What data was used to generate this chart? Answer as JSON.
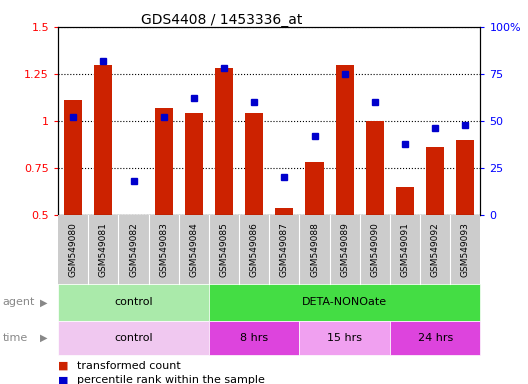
{
  "title": "GDS4408 / 1453336_at",
  "categories": [
    "GSM549080",
    "GSM549081",
    "GSM549082",
    "GSM549083",
    "GSM549084",
    "GSM549085",
    "GSM549086",
    "GSM549087",
    "GSM549088",
    "GSM549089",
    "GSM549090",
    "GSM549091",
    "GSM549092",
    "GSM549093"
  ],
  "red_values": [
    1.11,
    1.3,
    0.5,
    1.07,
    1.04,
    1.28,
    1.04,
    0.54,
    0.78,
    1.3,
    1.0,
    0.65,
    0.86,
    0.9
  ],
  "blue_values": [
    52,
    82,
    18,
    52,
    62,
    78,
    60,
    20,
    42,
    75,
    60,
    38,
    46,
    48
  ],
  "ylim_left": [
    0.5,
    1.5
  ],
  "ylim_right": [
    0,
    100
  ],
  "yticks_left": [
    0.5,
    0.75,
    1.0,
    1.25,
    1.5
  ],
  "yticks_right": [
    0,
    25,
    50,
    75,
    100
  ],
  "ytick_labels_left": [
    "0.5",
    "0.75",
    "1",
    "1.25",
    "1.5"
  ],
  "ytick_labels_right": [
    "0",
    "25",
    "50",
    "75",
    "100%"
  ],
  "bar_color": "#cc2200",
  "dot_color": "#0000cc",
  "agent_row": [
    {
      "label": "control",
      "start": 0,
      "end": 5,
      "color": "#aaeaaa"
    },
    {
      "label": "DETA-NONOate",
      "start": 5,
      "end": 14,
      "color": "#44dd44"
    }
  ],
  "time_row": [
    {
      "label": "control",
      "start": 0,
      "end": 5,
      "color": "#f0c8f0"
    },
    {
      "label": "8 hrs",
      "start": 5,
      "end": 8,
      "color": "#dd44dd"
    },
    {
      "label": "15 hrs",
      "start": 8,
      "end": 11,
      "color": "#f0a0f0"
    },
    {
      "label": "24 hrs",
      "start": 11,
      "end": 14,
      "color": "#dd44dd"
    }
  ],
  "legend_items": [
    {
      "label": "transformed count",
      "color": "#cc2200"
    },
    {
      "label": "percentile rank within the sample",
      "color": "#0000cc"
    }
  ]
}
